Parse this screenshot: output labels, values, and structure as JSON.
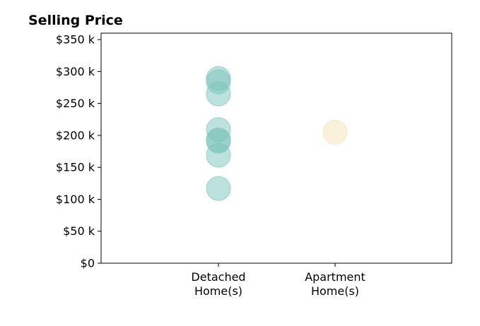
{
  "chart_data": {
    "type": "scatter",
    "title": "Selling Price",
    "xlabel": "",
    "ylabel": "",
    "categories": [
      [
        "Detached",
        "Home(s)"
      ],
      [
        "Apartment",
        "Home(s)"
      ]
    ],
    "ylim": [
      0,
      360000
    ],
    "y_ticks": [
      0,
      50000,
      100000,
      150000,
      200000,
      250000,
      300000,
      350000
    ],
    "y_tick_labels": [
      "$0",
      "$50 k",
      "$100 k",
      "$150 k",
      "$200 k",
      "$250 k",
      "$300 k",
      "$350 k"
    ],
    "grid": false,
    "legend": "none",
    "series": [
      {
        "category_index": 0,
        "color": "#7cc4ba",
        "values": [
          289000,
          284000,
          265000,
          209000,
          193000,
          191000,
          169000,
          117000
        ]
      },
      {
        "category_index": 1,
        "color": "#f6e3b5",
        "values": [
          205000
        ]
      }
    ]
  }
}
